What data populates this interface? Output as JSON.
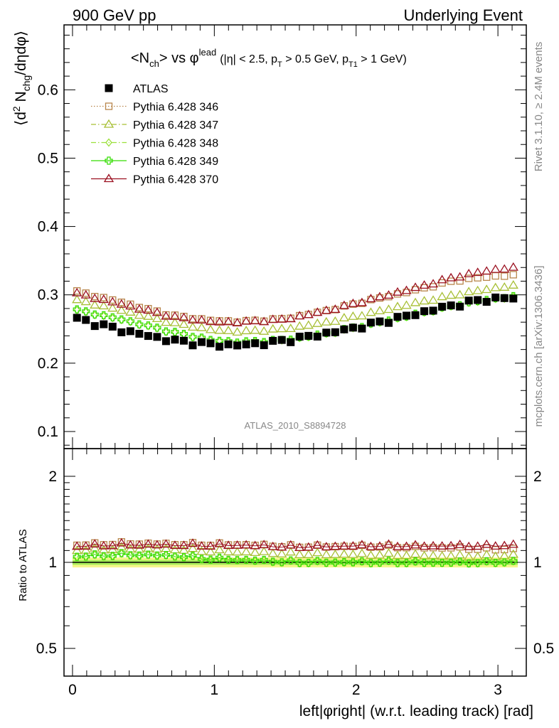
{
  "header": {
    "left": "900 GeV pp",
    "right": "Underlying Event"
  },
  "side_labels": {
    "rivet": "Rivet 3.1.10, ≥ 2.4M events",
    "mcplots": "mcplots.cern.ch [arXiv:1306.3436]"
  },
  "plot_title": {
    "main_a": "<N",
    "main_sub": "ch",
    "main_b": "> vs φ",
    "main_sup": "lead",
    "cuts_a": "(|η| < 2.5, p",
    "cuts_sub1": "T",
    "cuts_b": " > 0.5 GeV, p",
    "cuts_sub2": "T1",
    "cuts_c": " > 1 GeV)"
  },
  "watermark": "ATLAS_2010_S8894728",
  "axes": {
    "ylabel_top_a": "⟨d",
    "ylabel_top_sup": "2",
    "ylabel_top_b": " N",
    "ylabel_top_sub": "chg",
    "ylabel_top_c": "/dηdφ⟩",
    "ylabel_bottom": "Ratio to ATLAS",
    "xlabel": "left|φright| (w.r.t. leading track) [rad]",
    "top_yticks": [
      "0.1",
      "0.2",
      "0.3",
      "0.4",
      "0.5",
      "0.6"
    ],
    "bottom_yticks": [
      "0.5",
      "1",
      "2"
    ],
    "bottom_yticks_right": [
      "0.5",
      "1",
      "2"
    ],
    "xticks": [
      "0",
      "1",
      "2",
      "3"
    ]
  },
  "colors": {
    "atlas": "#000000",
    "p346": "#b8864b",
    "p347": "#a7bf35",
    "p348": "#9be03a",
    "p349": "#33dd00",
    "p370": "#9b1020",
    "band_outer": "#f4f68a",
    "band_inner": "#8eea4a"
  },
  "legend": [
    {
      "key": "atlas",
      "label": "ATLAS",
      "marker": "filled-square",
      "line": "none"
    },
    {
      "key": "p346",
      "label": "Pythia 6.428 346",
      "marker": "open-square",
      "line": "dotted"
    },
    {
      "key": "p347",
      "label": "Pythia 6.428 347",
      "marker": "open-triangle",
      "line": "dashdot"
    },
    {
      "key": "p348",
      "label": "Pythia 6.428 348",
      "marker": "open-diamond",
      "line": "dashdot"
    },
    {
      "key": "p349",
      "label": "Pythia 6.428 349",
      "marker": "open-cross",
      "line": "solid"
    },
    {
      "key": "p370",
      "label": "Pythia 6.428 370",
      "marker": "open-triangle",
      "line": "solid"
    }
  ],
  "chart_data": {
    "type": "scatter",
    "x_range": [
      -0.06,
      3.2
    ],
    "top_ylim": [
      0.075,
      0.695
    ],
    "ratio_log_scale": true,
    "ratio_ylim": [
      0.4,
      2.5
    ],
    "x_first": 0.0314,
    "x_step": 0.0628,
    "n_points": 50,
    "atlas_band_fraction": 0.04,
    "series": [
      {
        "key": "atlas",
        "name": "ATLAS",
        "anchors": [
          [
            0.03,
            0.265
          ],
          [
            0.35,
            0.248
          ],
          [
            0.7,
            0.233
          ],
          [
            1.0,
            0.227
          ],
          [
            1.15,
            0.226
          ],
          [
            1.4,
            0.23
          ],
          [
            1.7,
            0.24
          ],
          [
            2.0,
            0.252
          ],
          [
            2.3,
            0.266
          ],
          [
            2.6,
            0.281
          ],
          [
            2.9,
            0.293
          ],
          [
            3.14,
            0.296
          ]
        ]
      },
      {
        "key": "p346",
        "name": "Pythia 6.428 346",
        "anchors": [
          [
            0.03,
            0.305
          ],
          [
            0.35,
            0.289
          ],
          [
            0.7,
            0.27
          ],
          [
            1.0,
            0.262
          ],
          [
            1.2,
            0.261
          ],
          [
            1.5,
            0.265
          ],
          [
            1.8,
            0.277
          ],
          [
            2.1,
            0.292
          ],
          [
            2.4,
            0.306
          ],
          [
            2.7,
            0.321
          ],
          [
            2.95,
            0.327
          ],
          [
            3.14,
            0.329
          ]
        ]
      },
      {
        "key": "p347",
        "name": "Pythia 6.428 347",
        "anchors": [
          [
            0.03,
            0.292
          ],
          [
            0.35,
            0.277
          ],
          [
            0.7,
            0.259
          ],
          [
            1.0,
            0.248
          ],
          [
            1.2,
            0.246
          ],
          [
            1.5,
            0.25
          ],
          [
            1.8,
            0.26
          ],
          [
            2.1,
            0.273
          ],
          [
            2.4,
            0.287
          ],
          [
            2.7,
            0.3
          ],
          [
            2.95,
            0.309
          ],
          [
            3.14,
            0.314
          ]
        ]
      },
      {
        "key": "p348",
        "name": "Pythia 6.428 348",
        "anchors": [
          [
            0.03,
            0.277
          ],
          [
            0.35,
            0.263
          ],
          [
            0.7,
            0.245
          ],
          [
            1.0,
            0.232
          ],
          [
            1.2,
            0.23
          ],
          [
            1.5,
            0.233
          ],
          [
            1.8,
            0.243
          ],
          [
            2.1,
            0.256
          ],
          [
            2.4,
            0.27
          ],
          [
            2.7,
            0.284
          ],
          [
            2.95,
            0.293
          ],
          [
            3.14,
            0.297
          ]
        ]
      },
      {
        "key": "p349",
        "name": "Pythia 6.428 349",
        "anchors": [
          [
            0.03,
            0.278
          ],
          [
            0.35,
            0.264
          ],
          [
            0.7,
            0.246
          ],
          [
            1.0,
            0.233
          ],
          [
            1.2,
            0.231
          ],
          [
            1.5,
            0.234
          ],
          [
            1.8,
            0.244
          ],
          [
            2.1,
            0.257
          ],
          [
            2.4,
            0.271
          ],
          [
            2.7,
            0.285
          ],
          [
            2.95,
            0.294
          ],
          [
            3.14,
            0.298
          ]
        ]
      },
      {
        "key": "p370",
        "name": "Pythia 6.428 370",
        "anchors": [
          [
            0.03,
            0.302
          ],
          [
            0.35,
            0.286
          ],
          [
            0.7,
            0.268
          ],
          [
            1.0,
            0.26
          ],
          [
            1.2,
            0.26
          ],
          [
            1.5,
            0.264
          ],
          [
            1.8,
            0.277
          ],
          [
            2.1,
            0.293
          ],
          [
            2.4,
            0.309
          ],
          [
            2.7,
            0.326
          ],
          [
            2.95,
            0.336
          ],
          [
            3.14,
            0.34
          ]
        ]
      }
    ]
  }
}
